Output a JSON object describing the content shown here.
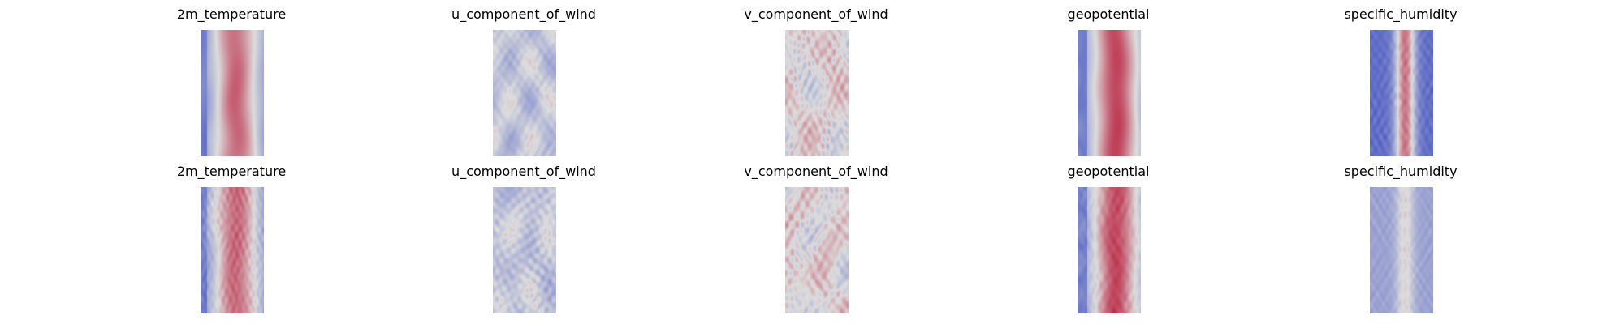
{
  "chart_data": {
    "type": "heatmap",
    "colormap": "coolwarm",
    "axes": "off",
    "colors": {
      "low": "#3b4cc0",
      "mid": "#dddddd",
      "high": "#b40426"
    },
    "rows": [
      {
        "panels": [
          {
            "title": "2m_temperature",
            "pattern": "temperature"
          },
          {
            "title": "u_component_of_wind",
            "pattern": "uwind"
          },
          {
            "title": "v_component_of_wind",
            "pattern": "vwind"
          },
          {
            "title": "geopotential",
            "pattern": "geopotential"
          },
          {
            "title": "specific_humidity",
            "pattern": "humidity"
          }
        ]
      },
      {
        "panels": [
          {
            "title": "2m_temperature",
            "pattern": "temperature-noisy"
          },
          {
            "title": "u_component_of_wind",
            "pattern": "uwind-noisy"
          },
          {
            "title": "v_component_of_wind",
            "pattern": "vwind-noisy"
          },
          {
            "title": "geopotential",
            "pattern": "geopotential-noisy"
          },
          {
            "title": "specific_humidity",
            "pattern": "humidity-noisy"
          }
        ]
      }
    ]
  }
}
